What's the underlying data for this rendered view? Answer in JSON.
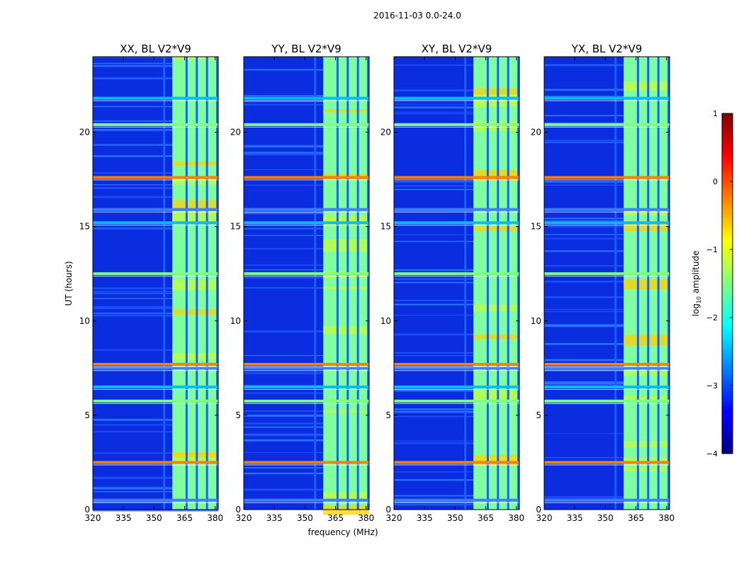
{
  "suptitle": "2016-11-03 0.0-24.0",
  "chart_data": {
    "type": "heatmap",
    "xlabel": "frequency (MHz)",
    "ylabel": "UT (hours)",
    "xlim": [
      320,
      381.5
    ],
    "ylim": [
      0,
      24
    ],
    "x_ticks": [
      320,
      335,
      350,
      365,
      380
    ],
    "y_ticks": [
      0,
      5,
      10,
      15,
      20
    ],
    "panels": [
      {
        "title": "XX, BL V2*V9",
        "band_start": 359,
        "lines": [
          355,
          366,
          371,
          376,
          381
        ]
      },
      {
        "title": "YY, BL V2*V9",
        "band_start": 359,
        "lines": [
          355,
          366,
          371,
          376,
          381
        ]
      },
      {
        "title": "XY, BL V2*V9",
        "band_start": 359,
        "lines": [
          355,
          366,
          371,
          376,
          381
        ]
      },
      {
        "title": "YX, BL V2*V9",
        "band_start": 359,
        "lines": [
          355,
          366,
          371,
          376,
          381
        ]
      }
    ],
    "rfi_rows_ut": [
      0.5,
      2.5,
      5.75,
      6.5,
      7.5,
      7.7,
      12.5,
      15.2,
      15.9,
      17.6,
      20.4,
      21.8
    ],
    "colorbar": {
      "label_main": "log",
      "label_sub": "10",
      "label_rest": " amplitude",
      "range": [
        -4,
        1
      ],
      "ticks": [
        1,
        0,
        -1,
        -2,
        -3,
        -4
      ],
      "tick_labels": [
        "1",
        "0",
        "−1",
        "−2",
        "−3",
        "−4"
      ],
      "colormap": "jet"
    }
  }
}
